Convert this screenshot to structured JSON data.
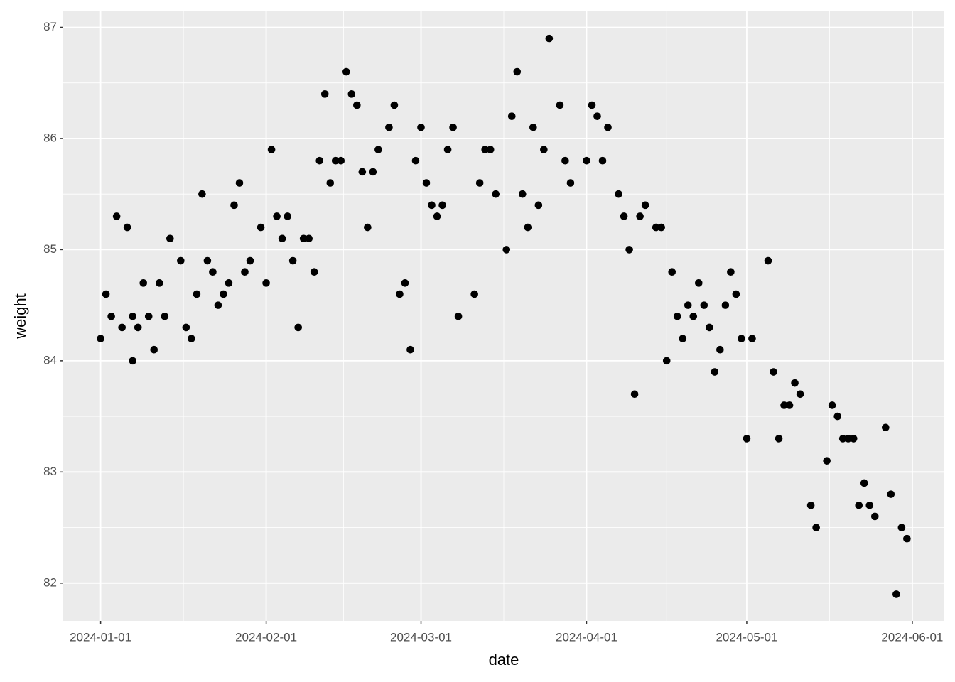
{
  "chart_data": {
    "type": "scatter",
    "x_label": "date",
    "y_label": "weight",
    "color": "#000000",
    "grid": true,
    "xlim": [
      "2023-12-25",
      "2024-06-07"
    ],
    "xticks": [
      "2024-01-01",
      "2024-02-01",
      "2024-03-01",
      "2024-04-01",
      "2024-05-01",
      "2024-06-01"
    ],
    "ylim": [
      81.66,
      87.15
    ],
    "yticks": [
      82,
      83,
      84,
      85,
      86,
      87
    ],
    "x": [
      "2024-01-01",
      "2024-01-02",
      "2024-01-03",
      "2024-01-04",
      "2024-01-05",
      "2024-01-06",
      "2024-01-07",
      "2024-01-07",
      "2024-01-08",
      "2024-01-09",
      "2024-01-10",
      "2024-01-11",
      "2024-01-12",
      "2024-01-13",
      "2024-01-14",
      "2024-01-16",
      "2024-01-17",
      "2024-01-18",
      "2024-01-19",
      "2024-01-20",
      "2024-01-21",
      "2024-01-22",
      "2024-01-23",
      "2024-01-24",
      "2024-01-25",
      "2024-01-26",
      "2024-01-27",
      "2024-01-28",
      "2024-01-29",
      "2024-01-31",
      "2024-02-01",
      "2024-02-02",
      "2024-02-03",
      "2024-02-04",
      "2024-02-05",
      "2024-02-06",
      "2024-02-07",
      "2024-02-08",
      "2024-02-09",
      "2024-02-10",
      "2024-02-11",
      "2024-02-12",
      "2024-02-13",
      "2024-02-14",
      "2024-02-15",
      "2024-02-16",
      "2024-02-17",
      "2024-02-18",
      "2024-02-19",
      "2024-02-20",
      "2024-02-21",
      "2024-02-22",
      "2024-02-24",
      "2024-02-25",
      "2024-02-26",
      "2024-02-27",
      "2024-02-28",
      "2024-02-29",
      "2024-03-01",
      "2024-03-02",
      "2024-03-03",
      "2024-03-04",
      "2024-03-05",
      "2024-03-06",
      "2024-03-07",
      "2024-03-08",
      "2024-03-11",
      "2024-03-12",
      "2024-03-13",
      "2024-03-14",
      "2024-03-15",
      "2024-03-17",
      "2024-03-18",
      "2024-03-19",
      "2024-03-20",
      "2024-03-21",
      "2024-03-22",
      "2024-03-23",
      "2024-03-24",
      "2024-03-25",
      "2024-03-27",
      "2024-03-28",
      "2024-03-29",
      "2024-04-01",
      "2024-04-02",
      "2024-04-03",
      "2024-04-04",
      "2024-04-05",
      "2024-04-07",
      "2024-04-08",
      "2024-04-09",
      "2024-04-10",
      "2024-04-11",
      "2024-04-12",
      "2024-04-14",
      "2024-04-15",
      "2024-04-16",
      "2024-04-17",
      "2024-04-18",
      "2024-04-19",
      "2024-04-20",
      "2024-04-21",
      "2024-04-22",
      "2024-04-23",
      "2024-04-24",
      "2024-04-25",
      "2024-04-26",
      "2024-04-27",
      "2024-04-28",
      "2024-04-29",
      "2024-04-30",
      "2024-05-01",
      "2024-05-02",
      "2024-05-05",
      "2024-05-06",
      "2024-05-07",
      "2024-05-08",
      "2024-05-09",
      "2024-05-10",
      "2024-05-11",
      "2024-05-13",
      "2024-05-14",
      "2024-05-16",
      "2024-05-17",
      "2024-05-18",
      "2024-05-19",
      "2024-05-20",
      "2024-05-21",
      "2024-05-22",
      "2024-05-23",
      "2024-05-24",
      "2024-05-25",
      "2024-05-27",
      "2024-05-28",
      "2024-05-29",
      "2024-05-30",
      "2024-05-31"
    ],
    "values": [
      84.2,
      84.6,
      84.4,
      85.3,
      84.3,
      85.2,
      84.0,
      84.4,
      84.3,
      84.7,
      84.4,
      84.1,
      84.7,
      84.4,
      85.1,
      84.9,
      84.3,
      84.2,
      84.6,
      85.5,
      84.9,
      84.8,
      84.5,
      84.6,
      84.7,
      85.4,
      85.6,
      84.8,
      84.9,
      85.2,
      84.7,
      85.9,
      85.3,
      85.1,
      85.3,
      84.9,
      84.3,
      85.1,
      85.1,
      84.8,
      85.8,
      86.4,
      85.6,
      85.8,
      85.8,
      86.6,
      86.4,
      86.3,
      85.7,
      85.2,
      85.7,
      85.9,
      86.1,
      86.3,
      84.6,
      84.7,
      84.1,
      85.8,
      86.1,
      85.6,
      85.4,
      85.3,
      85.4,
      85.9,
      86.1,
      84.4,
      84.6,
      85.6,
      85.9,
      85.9,
      85.5,
      85.0,
      86.2,
      86.6,
      85.5,
      85.2,
      86.1,
      85.4,
      85.9,
      86.9,
      86.3,
      85.8,
      85.6,
      85.8,
      86.3,
      86.2,
      85.8,
      86.1,
      85.5,
      85.3,
      85.0,
      83.7,
      85.3,
      85.4,
      85.2,
      85.2,
      84.0,
      84.8,
      84.4,
      84.2,
      84.5,
      84.4,
      84.7,
      84.5,
      84.3,
      83.9,
      84.1,
      84.5,
      84.8,
      84.6,
      84.2,
      83.3,
      84.2,
      84.9,
      83.9,
      83.3,
      83.6,
      83.6,
      83.8,
      83.7,
      82.7,
      82.5,
      83.1,
      83.6,
      83.5,
      83.3,
      83.3,
      83.3,
      82.7,
      82.9,
      82.7,
      82.6,
      83.4,
      82.8,
      81.9,
      82.5,
      82.4
    ]
  }
}
